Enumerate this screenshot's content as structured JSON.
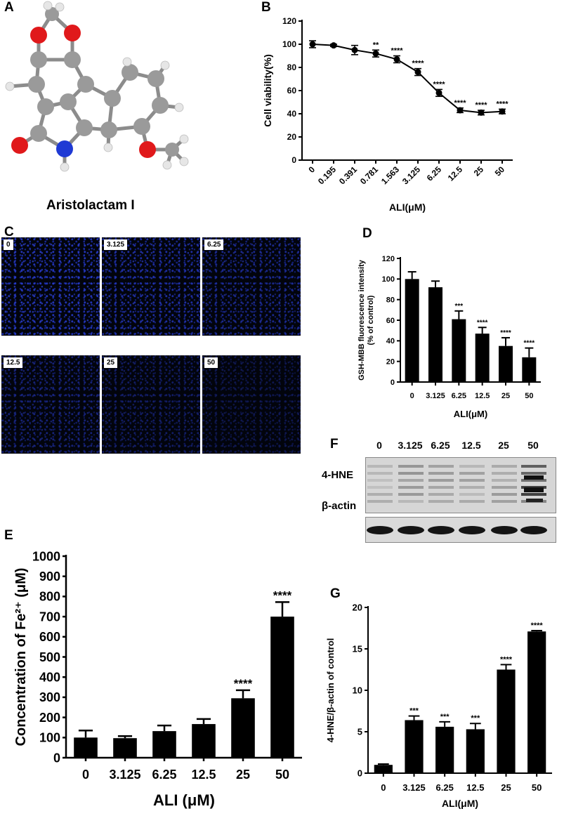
{
  "panels": {
    "A": {
      "letter": "A",
      "compound_name": "Aristolactam I"
    },
    "B": {
      "letter": "B"
    },
    "C": {
      "letter": "C",
      "images": [
        "0",
        "3.125",
        "6.25",
        "12.5",
        "25",
        "50"
      ]
    },
    "D": {
      "letter": "D"
    },
    "E": {
      "letter": "E"
    },
    "F": {
      "letter": "F",
      "lanes": [
        "0",
        "3.125",
        "6.25",
        "12.5",
        "25",
        "50"
      ],
      "band_labels": [
        "4-HNE",
        "β-actin"
      ]
    },
    "G": {
      "letter": "G"
    }
  },
  "chart_data": [
    {
      "id": "B",
      "type": "line",
      "xlabel": "ALI(μM)",
      "ylabel": "Cell viability(%)",
      "categories": [
        "0",
        "0.195",
        "0.391",
        "0.781",
        "1.563",
        "3.125",
        "6.25",
        "12.5",
        "25",
        "50"
      ],
      "values": [
        100,
        99,
        95,
        92,
        87,
        76,
        58,
        43,
        41,
        42
      ],
      "errors": [
        3,
        1,
        4,
        3,
        3,
        3,
        3,
        2,
        2,
        2
      ],
      "annotations": [
        "",
        "",
        "",
        "**",
        "****",
        "****",
        "****",
        "****",
        "****",
        "****"
      ],
      "ylim": [
        0,
        120
      ],
      "yticks": [
        0,
        20,
        40,
        60,
        80,
        100,
        120
      ]
    },
    {
      "id": "D",
      "type": "bar",
      "xlabel": "ALI(μM)",
      "ylabel": "GSH-MBB fluorescence intensity",
      "ylabel2": "(% of control)",
      "categories": [
        "0",
        "3.125",
        "6.25",
        "12.5",
        "25",
        "50"
      ],
      "values": [
        100,
        92,
        61,
        47,
        35,
        24
      ],
      "errors": [
        7,
        6,
        8,
        6,
        8,
        9
      ],
      "annotations": [
        "",
        "",
        "***",
        "****",
        "****",
        "****"
      ],
      "ylim": [
        0,
        120
      ],
      "yticks": [
        0,
        20,
        40,
        60,
        80,
        100,
        120
      ]
    },
    {
      "id": "E",
      "type": "bar",
      "xlabel": "ALI (μM)",
      "ylabel": "Concentration of Fe²⁺ (μM)",
      "categories": [
        "0",
        "3.125",
        "6.25",
        "12.5",
        "25",
        "50"
      ],
      "values": [
        100,
        97,
        132,
        167,
        295,
        700
      ],
      "errors": [
        35,
        10,
        28,
        25,
        40,
        72
      ],
      "annotations": [
        "",
        "",
        "",
        "",
        "****",
        "****"
      ],
      "ylim": [
        0,
        1000
      ],
      "yticks": [
        0,
        100,
        200,
        300,
        400,
        500,
        600,
        700,
        800,
        900,
        1000
      ]
    },
    {
      "id": "G",
      "type": "bar",
      "xlabel": "ALI(μM)",
      "ylabel": "4-HNE/β-actin of control",
      "categories": [
        "0",
        "3.125",
        "6.25",
        "12.5",
        "25",
        "50"
      ],
      "values": [
        1,
        6.4,
        5.6,
        5.3,
        12.5,
        17.1
      ],
      "errors": [
        0.1,
        0.5,
        0.6,
        0.7,
        0.6,
        0.1
      ],
      "annotations": [
        "",
        "***",
        "***",
        "***",
        "****",
        "****"
      ],
      "ylim": [
        0,
        20
      ],
      "yticks": [
        0,
        5,
        10,
        15,
        20
      ]
    }
  ]
}
